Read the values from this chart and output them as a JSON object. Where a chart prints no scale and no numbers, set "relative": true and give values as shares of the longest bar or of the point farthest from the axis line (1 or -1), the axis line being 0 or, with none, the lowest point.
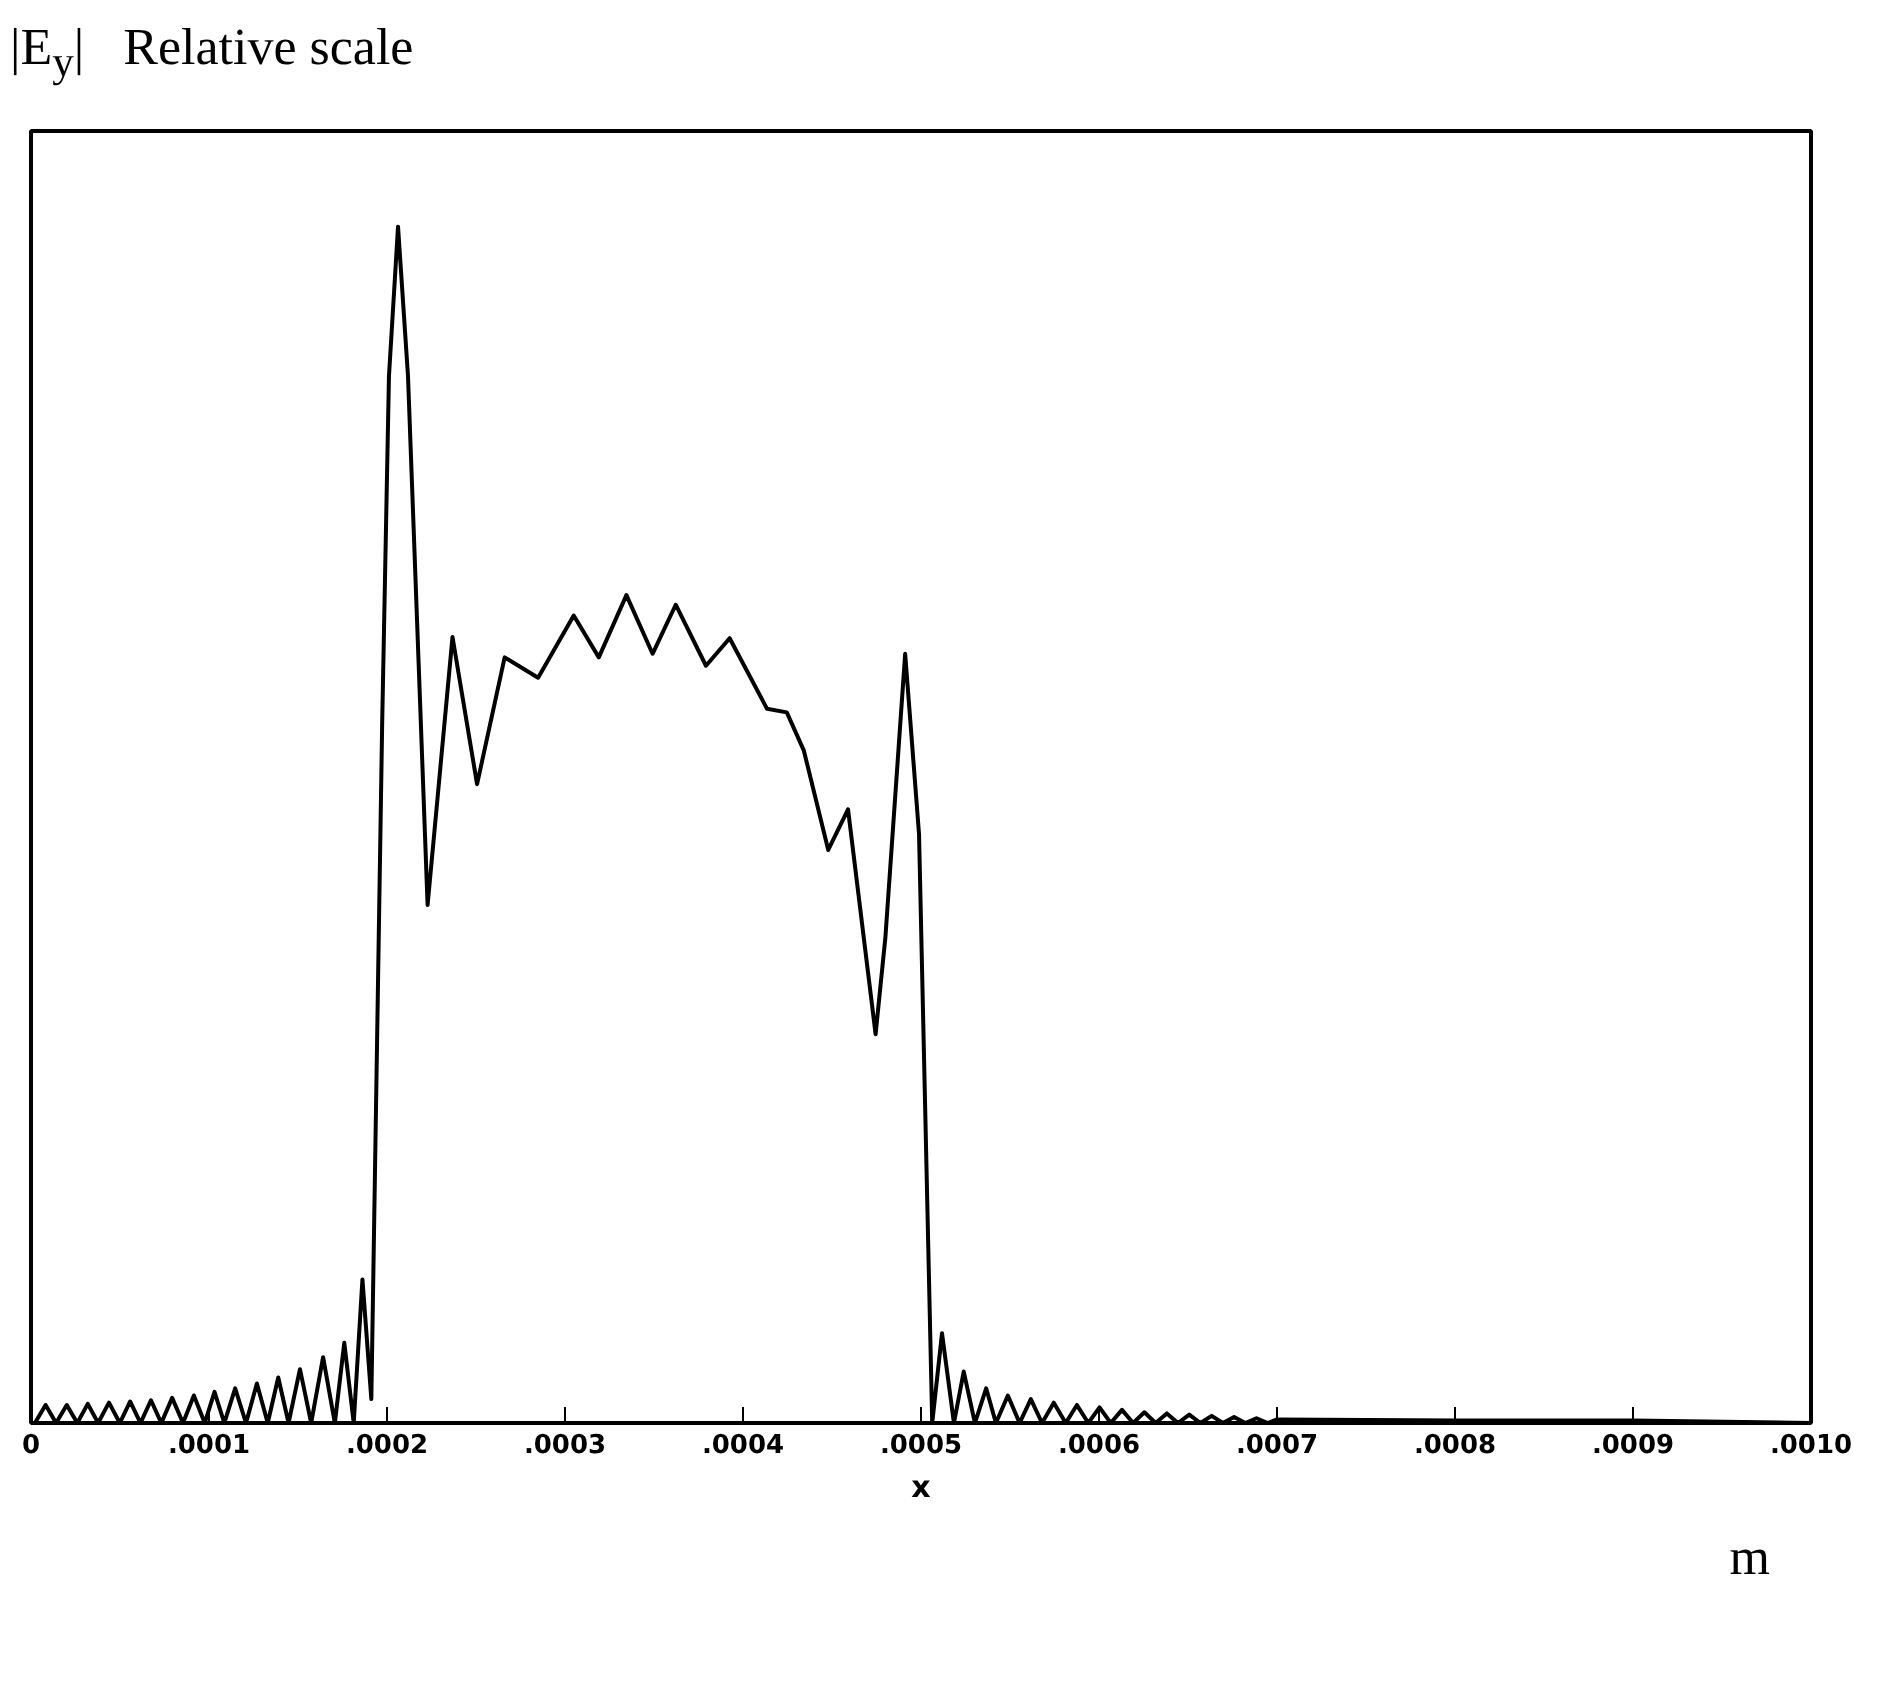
{
  "chart_data": {
    "type": "line",
    "title": "|E$_{y}$|  Relative scale",
    "xlabel": "x",
    "annotations": [
      "m"
    ],
    "relative": true,
    "tick_labels": "x",
    "grid": false,
    "marker": "none",
    "line_style": "solid",
    "xlim": [
      0,
      0.001
    ],
    "xticks": [
      0,
      {
        "value": 0.0001,
        "label": ".0001"
      },
      {
        "value": 0.0002,
        "label": ".0002"
      },
      {
        "value": 0.0003,
        "label": ".0003"
      },
      {
        "value": 0.0004,
        "label": ".0004"
      },
      {
        "value": 0.0005,
        "label": ".0005"
      },
      {
        "value": 0.0006,
        "label": ".0006"
      },
      {
        "value": 0.0007,
        "label": ".0007"
      },
      {
        "value": 0.0008,
        "label": ".0008"
      },
      {
        "value": 0.0009,
        "label": ".0009"
      },
      {
        "value": 0.001,
        "label": ".0010"
      }
    ],
    "series": [
      {
        "color": "#000000",
        "x": [
          2.2e-06,
          8.2e-06,
          1.41e-05,
          2.01e-05,
          2.6e-05,
          3.19e-05,
          3.77e-05,
          4.38e-05,
          4.99e-05,
          5.57e-05,
          6.15e-05,
          6.74e-05,
          7.32e-05,
          7.93e-05,
          8.54e-05,
          9.15e-05,
          9.76e-05,
          0.0001031,
          0.0001086,
          0.0001147,
          0.0001208,
          0.0001269,
          0.000133,
          0.0001389,
          0.0001447,
          0.0001511,
          0.0001574,
          0.0001641,
          0.0001707,
          0.000176,
          0.0001813,
          0.0001862,
          0.0001912,
          0.0001973,
          0.0002011,
          0.0002062,
          0.0002118,
          0.0002228,
          0.0002368,
          0.0002506,
          0.0002661,
          0.0002849,
          0.0003049,
          0.000319,
          0.0003345,
          0.0003492,
          0.0003622,
          0.0003792,
          0.0003925,
          0.0004135,
          0.0004246,
          0.0004342,
          0.0004479,
          0.000459,
          0.0004745,
          0.00048,
          0.0004911,
          0.0004989,
          0.0005063,
          0.0005118,
          0.0005185,
          0.000524,
          0.0005303,
          0.0005366,
          0.0005421,
          0.0005488,
          0.0005554,
          0.0005617,
          0.000568,
          0.0005746,
          0.0005813,
          0.0005876,
          0.000594,
          0.0006003,
          0.0006066,
          0.0006129,
          0.0006192,
          0.0006255,
          0.0006318,
          0.0006381,
          0.0006444,
          0.0006507,
          0.000657,
          0.0006633,
          0.0006696,
          0.0006759,
          0.0006822,
          0.0006885,
          0.0006948,
          0.0007,
          0.0008,
          0.0009,
          0.001
        ],
        "values": [
          0,
          0.015,
          0,
          0.015,
          0,
          0.016,
          0,
          0.017,
          0,
          0.018,
          0,
          0.019,
          0,
          0.021,
          0,
          0.023,
          0,
          0.026,
          0,
          0.029,
          0,
          0.033,
          0,
          0.038,
          0,
          0.045,
          0,
          0.055,
          0,
          0.067,
          0,
          0.12,
          0.02,
          0.586,
          0.875,
          1.0,
          0.875,
          0.433,
          0.657,
          0.534,
          0.64,
          0.623,
          0.675,
          0.64,
          0.692,
          0.643,
          0.684,
          0.633,
          0.656,
          0.597,
          0.594,
          0.562,
          0.479,
          0.513,
          0.325,
          0.406,
          0.643,
          0.492,
          0,
          0.075,
          0,
          0.043,
          0,
          0.029,
          0,
          0.023,
          0,
          0.02,
          0,
          0.017,
          0,
          0.015,
          0,
          0.013,
          0,
          0.011,
          0,
          0.009,
          0,
          0.008,
          0,
          0.007,
          0,
          0.006,
          0,
          0.005,
          0,
          0.004,
          0,
          0.003,
          0.002,
          0.002,
          0
        ]
      }
    ]
  }
}
